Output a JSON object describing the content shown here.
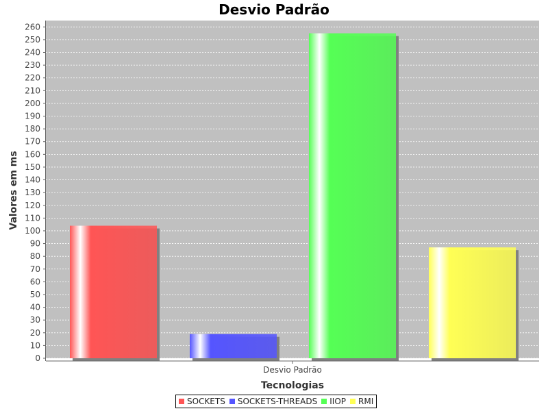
{
  "chart_data": {
    "type": "bar",
    "title": "Desvio Padrão",
    "xlabel": "Tecnologias",
    "ylabel": "Valores em ms",
    "categories": [
      "Desvio Padrão"
    ],
    "ylim": [
      0,
      265
    ],
    "yticks": [
      0,
      10,
      20,
      30,
      40,
      50,
      60,
      70,
      80,
      90,
      100,
      110,
      120,
      130,
      140,
      150,
      160,
      170,
      180,
      190,
      200,
      210,
      220,
      230,
      240,
      250,
      260
    ],
    "grid": true,
    "legend_position": "bottom",
    "series": [
      {
        "name": "SOCKETS",
        "values": [
          104
        ],
        "color": "#ff5555"
      },
      {
        "name": "SOCKETS-THREADS",
        "values": [
          19
        ],
        "color": "#5555ff"
      },
      {
        "name": "IIOP",
        "values": [
          255
        ],
        "color": "#55ff55"
      },
      {
        "name": "RMI",
        "values": [
          87
        ],
        "color": "#ffff55"
      }
    ]
  }
}
